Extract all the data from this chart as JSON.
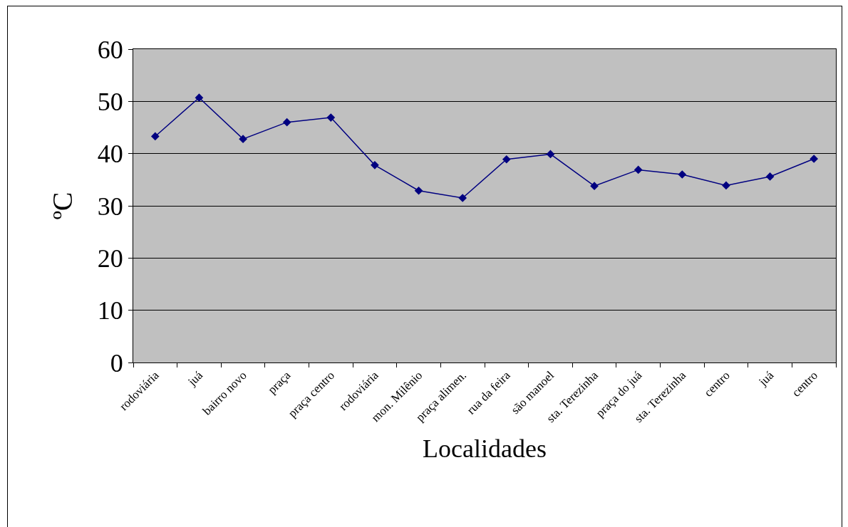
{
  "chart_data": {
    "type": "line",
    "xlabel": "Localidades",
    "ylabel": "ºC",
    "categories": [
      "rodoviária",
      "juá",
      "bairro novo",
      "praça",
      "praça centro",
      "rodoviária",
      "mon. Milênio",
      "praça alimen.",
      "rua da feira",
      "são manoel",
      "sta. Terezinha",
      "praça do juá",
      "sta. Terezinha",
      "centro",
      "juá",
      "centro"
    ],
    "series": [
      {
        "color": "#000080",
        "values": [
          43.3,
          50.7,
          42.8,
          46.0,
          46.9,
          37.8,
          32.9,
          31.5,
          38.9,
          39.9,
          33.8,
          36.9,
          36.0,
          33.9,
          35.6,
          39.0
        ]
      }
    ],
    "ylim": [
      0,
      60
    ],
    "yticks": [
      0,
      10,
      20,
      30,
      40,
      50,
      60
    ],
    "grid": "y",
    "marker": "diamond",
    "line_style": "solid"
  }
}
